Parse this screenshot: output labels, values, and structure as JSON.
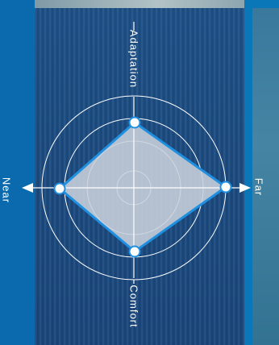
{
  "labels": {
    "near": "Near",
    "far": "Far",
    "adaptation": "Adaptation",
    "comfort": "Comfort"
  },
  "colors": {
    "panel": "#0a6aad",
    "polygon_fill": "#c9d2dc",
    "polygon_stroke": "#1f8fe0",
    "ring": "#ffffff"
  }
}
